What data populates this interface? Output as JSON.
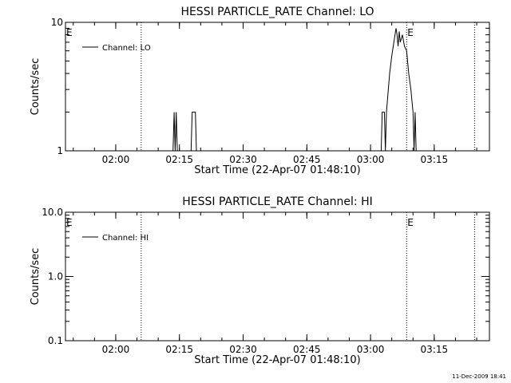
{
  "footer_timestamp": "11-Dec-2009 18:41",
  "chart_data": [
    {
      "type": "line",
      "title": "HESSI PARTICLE_RATE Channel: LO",
      "xlabel": "Start Time (22-Apr-07 01:48:10)",
      "ylabel": "Counts/sec",
      "y_scale": "log",
      "ylim": [
        1,
        10
      ],
      "y_ticks": [
        "1",
        "10"
      ],
      "xlim": [
        "01:48:10",
        "03:28:00"
      ],
      "x_ticks": [
        "02:00",
        "02:15",
        "02:30",
        "02:45",
        "03:00",
        "03:15"
      ],
      "legend": {
        "position": "top-left",
        "entries": [
          "Channel: LO"
        ]
      },
      "markers": [
        {
          "time": "02:06:00",
          "label": ""
        },
        {
          "time": "03:08:30",
          "label": "E"
        },
        {
          "time": "03:24:30",
          "label": ""
        }
      ],
      "left_marker_label": "E",
      "series": [
        {
          "name": "Channel: LO",
          "points": [
            [
              "02:13:30",
              1
            ],
            [
              "02:13:45",
              2
            ],
            [
              "02:14:00",
              1
            ],
            [
              "02:14:15",
              2
            ],
            [
              "02:14:30",
              1
            ],
            [
              "02:17:45",
              1
            ],
            [
              "02:18:00",
              2
            ],
            [
              "02:18:45",
              2
            ],
            [
              "02:19:00",
              1
            ],
            [
              "03:02:30",
              1
            ],
            [
              "03:02:45",
              2
            ],
            [
              "03:03:15",
              2
            ],
            [
              "03:03:30",
              1
            ],
            [
              "03:03:45",
              2
            ],
            [
              "03:04:00",
              2.5
            ],
            [
              "03:04:30",
              4
            ],
            [
              "03:05:00",
              5.5
            ],
            [
              "03:05:30",
              7
            ],
            [
              "03:06:00",
              9
            ],
            [
              "03:06:15",
              8
            ],
            [
              "03:06:30",
              6.5
            ],
            [
              "03:06:45",
              8.5
            ],
            [
              "03:07:00",
              7
            ],
            [
              "03:07:30",
              8
            ],
            [
              "03:08:00",
              6.5
            ],
            [
              "03:08:30",
              6
            ],
            [
              "03:09:00",
              4
            ],
            [
              "03:09:30",
              3
            ],
            [
              "03:10:00",
              2
            ],
            [
              "03:10:15",
              1
            ],
            [
              "03:10:30",
              2
            ],
            [
              "03:10:45",
              1
            ]
          ]
        }
      ]
    },
    {
      "type": "line",
      "title": "HESSI PARTICLE_RATE Channel: HI",
      "xlabel": "Start Time (22-Apr-07 01:48:10)",
      "ylabel": "Counts/sec",
      "y_scale": "log",
      "ylim": [
        0.1,
        10
      ],
      "y_ticks": [
        "0.1",
        "1.0",
        "10.0"
      ],
      "xlim": [
        "01:48:10",
        "03:28:00"
      ],
      "x_ticks": [
        "02:00",
        "02:15",
        "02:30",
        "02:45",
        "03:00",
        "03:15"
      ],
      "legend": {
        "position": "top-left",
        "entries": [
          "Channel: HI"
        ]
      },
      "markers": [
        {
          "time": "02:06:00",
          "label": ""
        },
        {
          "time": "03:08:30",
          "label": "E"
        },
        {
          "time": "03:24:30",
          "label": ""
        }
      ],
      "left_marker_label": "E",
      "series": [
        {
          "name": "Channel: HI",
          "points": []
        }
      ]
    }
  ]
}
